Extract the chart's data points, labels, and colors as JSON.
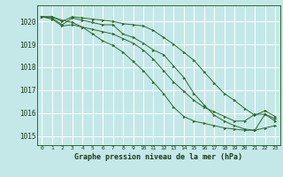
{
  "title": "Graphe pression niveau de la mer (hPa)",
  "bg_color": "#c4e8e8",
  "grid_color": "#ffffff",
  "line_color": "#2d6a2d",
  "xlim": [
    -0.5,
    23.5
  ],
  "ylim": [
    1014.6,
    1020.7
  ],
  "yticks": [
    1015,
    1016,
    1017,
    1018,
    1019,
    1020
  ],
  "xticks": [
    0,
    1,
    2,
    3,
    4,
    5,
    6,
    7,
    8,
    9,
    10,
    11,
    12,
    13,
    14,
    15,
    16,
    17,
    18,
    19,
    20,
    21,
    22,
    23
  ],
  "series": [
    [
      1020.2,
      1020.2,
      1020.0,
      1020.2,
      1020.15,
      1020.1,
      1020.05,
      1020.0,
      1019.9,
      1019.85,
      1019.8,
      1019.6,
      1019.3,
      1019.0,
      1018.65,
      1018.3,
      1017.8,
      1017.3,
      1016.85,
      1016.55,
      1016.2,
      1015.9,
      1016.1,
      1015.85
    ],
    [
      1020.2,
      1020.1,
      1019.8,
      1019.85,
      1019.75,
      1019.65,
      1019.55,
      1019.45,
      1019.25,
      1019.05,
      1018.75,
      1018.35,
      1017.85,
      1017.35,
      1016.95,
      1016.55,
      1016.25,
      1016.05,
      1015.85,
      1015.65,
      1015.65,
      1015.95,
      1015.95,
      1015.75
    ],
    [
      1020.2,
      1020.15,
      1019.85,
      1020.15,
      1020.05,
      1019.95,
      1019.85,
      1019.85,
      1019.45,
      1019.3,
      1019.05,
      1018.75,
      1018.55,
      1018.05,
      1017.55,
      1016.85,
      1016.35,
      1015.9,
      1015.65,
      1015.45,
      1015.3,
      1015.25,
      1015.95,
      1015.65
    ],
    [
      1020.2,
      1020.2,
      1020.05,
      1019.95,
      1019.75,
      1019.45,
      1019.15,
      1018.95,
      1018.65,
      1018.25,
      1017.85,
      1017.35,
      1016.85,
      1016.25,
      1015.85,
      1015.65,
      1015.55,
      1015.45,
      1015.35,
      1015.3,
      1015.25,
      1015.25,
      1015.35,
      1015.45
    ]
  ]
}
